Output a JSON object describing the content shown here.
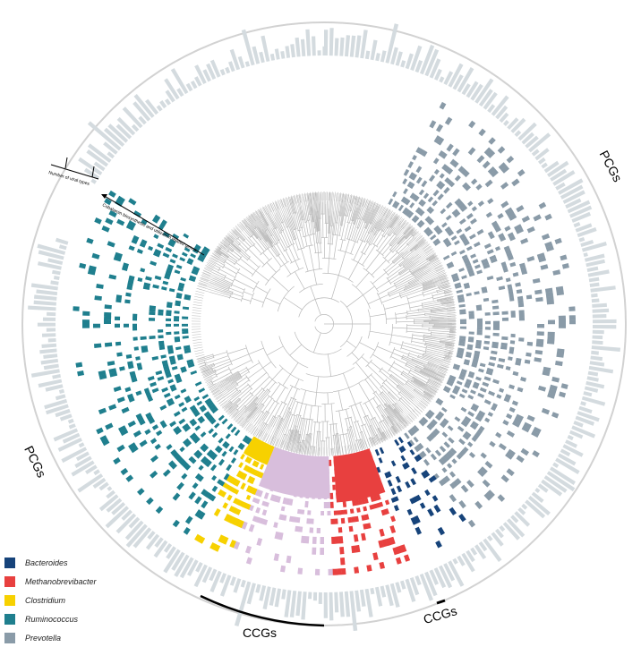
{
  "figure": {
    "arc_labels": [
      "PCGs",
      "PCGs",
      "CCGs",
      "CCGs"
    ],
    "axis_annotations": {
      "viral_types": "Number of viral types",
      "genes": "Cobalamin biosynthesis and utilization related genes"
    }
  },
  "legend": [
    {
      "label": "Bacteroides",
      "color": "#16437a"
    },
    {
      "label": "Methanobrevibacter",
      "color": "#e8403f"
    },
    {
      "label": "Clostridium",
      "color": "#f7d100"
    },
    {
      "label": "Ruminococcus",
      "color": "#1f7f8e"
    },
    {
      "label": "Prevotella",
      "color": "#8a9ba8"
    }
  ],
  "colors": {
    "lavender": "#d8bedc",
    "tree": "#b9b9b9",
    "outer_bars": "#d4dbdf",
    "outer_ring": "#d2d2d2",
    "ccg_arc": "#000000"
  }
}
